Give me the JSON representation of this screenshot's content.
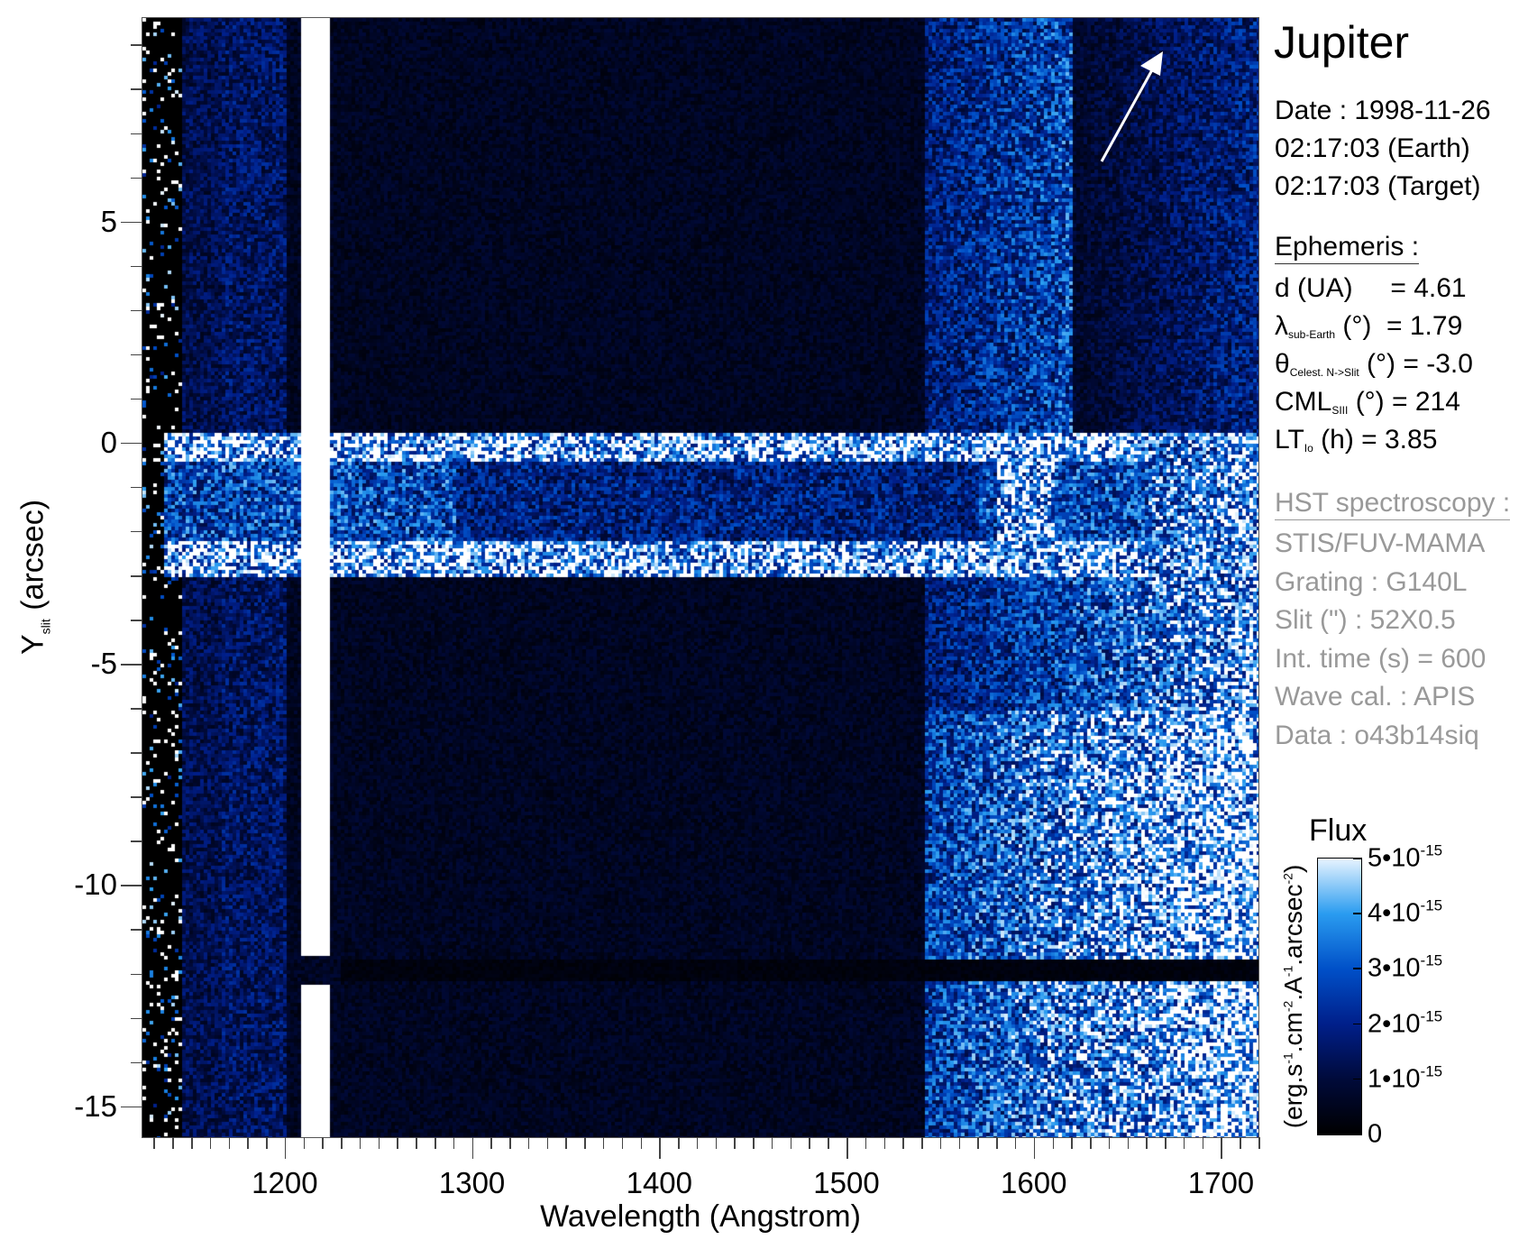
{
  "chart_data": {
    "type": "heatmap",
    "title": "Jupiter",
    "xlabel": "Wavelength (Angstrom)",
    "ylabel_main": "Y",
    "ylabel_sub": "slit",
    "ylabel_unit": "(arcsec)",
    "xlim": [
      1124,
      1720
    ],
    "ylim": [
      -15.7,
      9.6
    ],
    "xticks": [
      1200,
      1300,
      1400,
      1500,
      1600,
      1700
    ],
    "yticks": [
      5,
      0,
      -5,
      -10,
      -15
    ],
    "colorbar": {
      "label": "Flux",
      "unit_parts": [
        "(erg.s",
        "-1",
        ".cm",
        "-2",
        ".A",
        "-1",
        ".arcsec",
        "-2",
        ")"
      ],
      "range": [
        0,
        5e-15
      ],
      "ticks": [
        {
          "value": 5e-15,
          "mant": "5•10",
          "exp": "-15"
        },
        {
          "value": 4e-15,
          "mant": "4•10",
          "exp": "-15"
        },
        {
          "value": 3e-15,
          "mant": "3•10",
          "exp": "-15"
        },
        {
          "value": 2e-15,
          "mant": "2•10",
          "exp": "-15"
        },
        {
          "value": 1e-15,
          "mant": "1•10",
          "exp": "-15"
        },
        {
          "value": 0,
          "mant": "0",
          "exp": ""
        }
      ],
      "colors": [
        "#000000",
        "#001f8a",
        "#0050c8",
        "#2a9cf0",
        "#ffffff"
      ]
    },
    "features": {
      "lyman_alpha_wavelength": 1216,
      "disk_band_y": [
        0,
        -2.7
      ],
      "dark_row_y": -11.9,
      "bright_region_start_wavelength": 1540
    }
  },
  "side": {
    "title": "Jupiter",
    "date": "Date : 1998-11-26",
    "time_earth": "02:17:03 (Earth)",
    "time_target": "02:17:03 (Target)",
    "ephemeris_header": "Ephemeris :",
    "ephem": [
      {
        "sym": "d (UA)",
        "sub": "",
        "rest": "     = 4.61"
      },
      {
        "sym": "λ",
        "sub": "sub-Earth",
        "rest": " (°)  = 1.79"
      },
      {
        "sym": "θ",
        "sub": "Celest. N->Slit",
        "rest": " (°) = -3.0"
      },
      {
        "sym": "CML",
        "sub": "SIII",
        "rest": " (°) = 214"
      },
      {
        "sym": "LT",
        "sub": "Io",
        "rest": " (h) = 3.85"
      }
    ],
    "hst_header": "HST spectroscopy :",
    "hst": [
      "STIS/FUV-MAMA",
      "Grating : G140L",
      "Slit (\") : 52X0.5",
      "Int. time (s) = 600",
      "Wave cal. : APIS",
      "Data : o43b14siq"
    ]
  }
}
